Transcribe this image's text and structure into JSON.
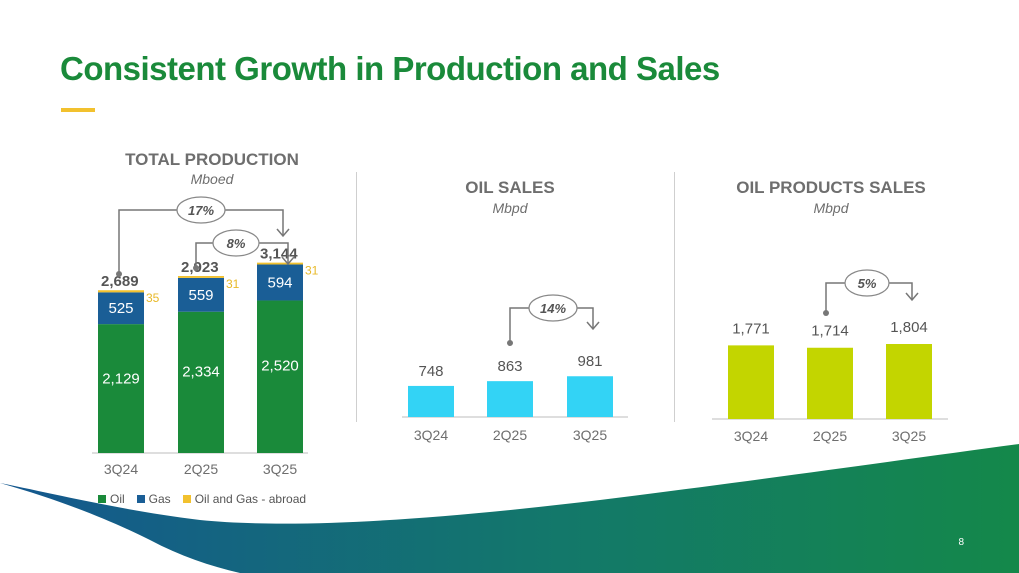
{
  "page": {
    "title": "Consistent Growth in Production and Sales",
    "page_number": "8",
    "colors": {
      "title": "#1a8a3a",
      "accent": "#f2c12e",
      "oil": "#1a8a3a",
      "gas": "#1a5e96",
      "abroad": "#f2c12e",
      "oil_sales": "#33d3f5",
      "products": "#c3d500"
    }
  },
  "legend": {
    "items": [
      {
        "label": "Oil",
        "color": "#1a8a3a"
      },
      {
        "label": "Gas",
        "color": "#1a5e96"
      },
      {
        "label": "Oil and Gas - abroad",
        "color": "#f2c12e"
      }
    ]
  },
  "chart_data": [
    {
      "type": "bar",
      "stacked": true,
      "title": "TOTAL PRODUCTION",
      "unit": "Mboed",
      "categories": [
        "3Q24",
        "2Q25",
        "3Q25"
      ],
      "series": [
        {
          "name": "Oil",
          "values": [
            2129,
            2334,
            2520
          ],
          "labels": [
            "2,129",
            "2,334",
            "2,520"
          ]
        },
        {
          "name": "Gas",
          "values": [
            525,
            559,
            594
          ],
          "labels": [
            "525",
            "559",
            "594"
          ]
        },
        {
          "name": "Oil and Gas - abroad",
          "values": [
            35,
            31,
            31
          ],
          "labels": [
            "35",
            "31",
            "31"
          ]
        }
      ],
      "totals": [
        "2,689",
        "2,923",
        "3,144"
      ],
      "total_values": [
        2689,
        2923,
        3144
      ],
      "annotations": [
        {
          "text": "17%",
          "from": "3Q24",
          "to": "3Q25"
        },
        {
          "text": "8%",
          "from": "2Q25",
          "to": "3Q25"
        }
      ]
    },
    {
      "type": "bar",
      "title": "OIL SALES",
      "unit": "Mbpd",
      "categories": [
        "3Q24",
        "2Q25",
        "3Q25"
      ],
      "values": [
        748,
        863,
        981
      ],
      "labels": [
        "748",
        "863",
        "981"
      ],
      "annotations": [
        {
          "text": "14%",
          "from": "2Q25",
          "to": "3Q25"
        }
      ]
    },
    {
      "type": "bar",
      "title": "OIL PRODUCTS SALES",
      "unit": "Mbpd",
      "categories": [
        "3Q24",
        "2Q25",
        "3Q25"
      ],
      "values": [
        1771,
        1714,
        1804
      ],
      "labels": [
        "1,771",
        "1,714",
        "1,804"
      ],
      "annotations": [
        {
          "text": "5%",
          "from": "2Q25",
          "to": "3Q25"
        }
      ]
    }
  ]
}
